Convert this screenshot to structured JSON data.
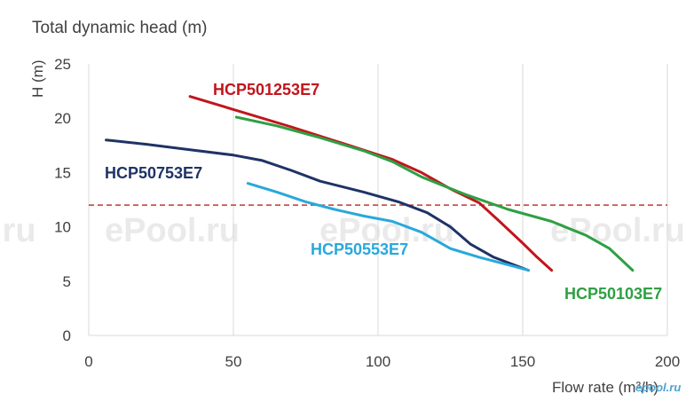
{
  "chart_data": {
    "type": "line",
    "title": "Total dynamic head (m)",
    "ylabel": "H (m)",
    "xlabel": "Flow rate (m³/h)",
    "xlim": [
      0,
      200
    ],
    "ylim": [
      0,
      25
    ],
    "x_ticks": [
      "0",
      "50",
      "100",
      "150",
      "200"
    ],
    "y_ticks": [
      "0",
      "5",
      "10",
      "15",
      "20",
      "25"
    ],
    "grid": "vertical",
    "reference_line": {
      "y": 12,
      "color": "#c0392b",
      "style": "dashed"
    },
    "series": [
      {
        "name": "HCP501253E7",
        "color": "#c0161c",
        "points": [
          [
            35,
            22
          ],
          [
            50,
            20.8
          ],
          [
            70,
            19.2
          ],
          [
            90,
            17.5
          ],
          [
            105,
            16.2
          ],
          [
            115,
            15
          ],
          [
            125,
            13.5
          ],
          [
            135,
            12.2
          ],
          [
            142,
            10.5
          ],
          [
            150,
            8.5
          ],
          [
            155,
            7.2
          ],
          [
            160,
            6
          ]
        ]
      },
      {
        "name": "HCP50103E7",
        "color": "#2ea043",
        "points": [
          [
            51,
            20.1
          ],
          [
            65,
            19.3
          ],
          [
            80,
            18.2
          ],
          [
            95,
            17
          ],
          [
            105,
            16
          ],
          [
            115,
            14.6
          ],
          [
            130,
            13
          ],
          [
            145,
            11.6
          ],
          [
            160,
            10.5
          ],
          [
            172,
            9.2
          ],
          [
            180,
            8
          ],
          [
            188,
            6
          ]
        ]
      },
      {
        "name": "HCP50753E7",
        "color": "#1e3366",
        "points": [
          [
            6,
            18
          ],
          [
            20,
            17.6
          ],
          [
            35,
            17.1
          ],
          [
            50,
            16.6
          ],
          [
            60,
            16.1
          ],
          [
            70,
            15.2
          ],
          [
            80,
            14.2
          ],
          [
            95,
            13.2
          ],
          [
            107,
            12.3
          ],
          [
            117,
            11.3
          ],
          [
            125,
            10
          ],
          [
            132,
            8.4
          ],
          [
            140,
            7.2
          ],
          [
            152,
            6
          ]
        ]
      },
      {
        "name": "HCP50553E7",
        "color": "#29a8dc",
        "points": [
          [
            55,
            14
          ],
          [
            65,
            13.2
          ],
          [
            75,
            12.3
          ],
          [
            85,
            11.6
          ],
          [
            95,
            11
          ],
          [
            105,
            10.5
          ],
          [
            115,
            9.5
          ],
          [
            125,
            8
          ],
          [
            135,
            7.2
          ],
          [
            145,
            6.5
          ],
          [
            152,
            6
          ]
        ]
      }
    ],
    "labels": [
      {
        "series": "HCP501253E7",
        "text": "HCP501253E7"
      },
      {
        "series": "HCP50753E7",
        "text": "HCP50753E7"
      },
      {
        "series": "HCP50553E7",
        "text": "HCP50553E7"
      },
      {
        "series": "HCP50103E7",
        "text": "HCP50103E7"
      }
    ]
  },
  "watermarks": [
    "ePool.ru",
    "ePool.ru",
    "ePool.ru",
    ".ru"
  ],
  "brand": "epool.ru"
}
